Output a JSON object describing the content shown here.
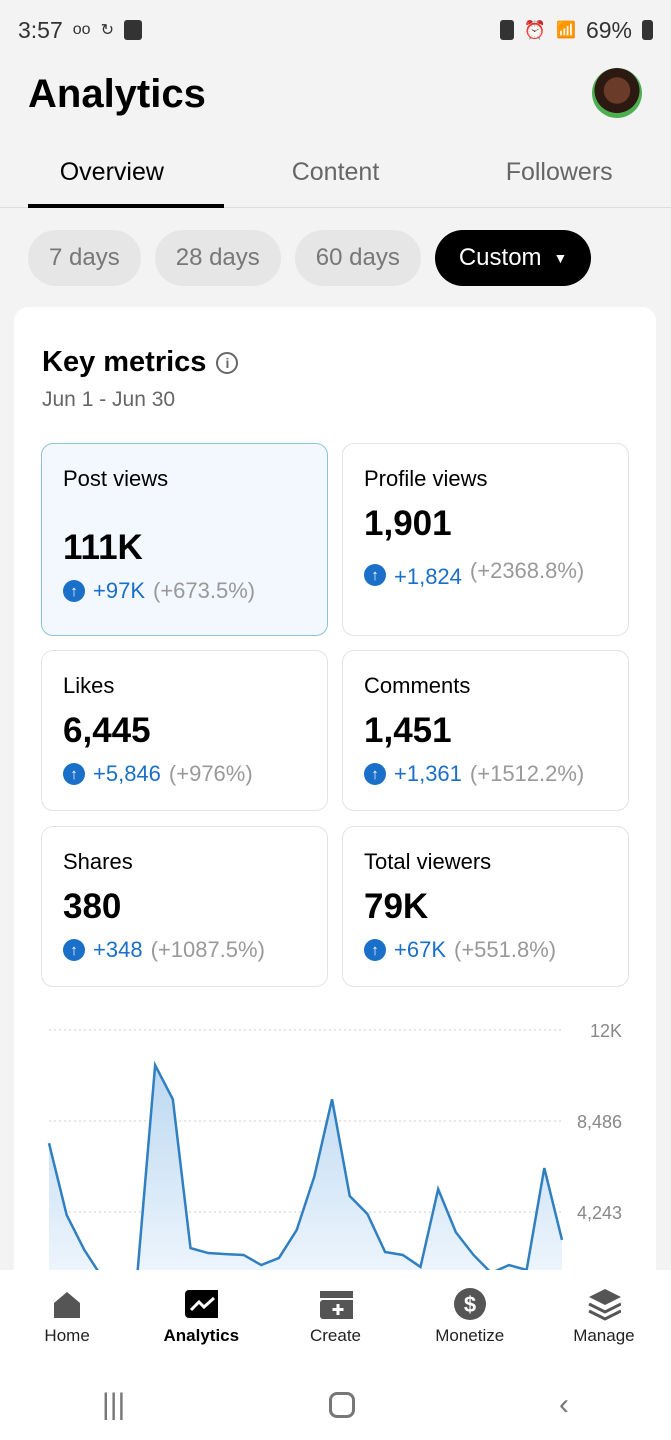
{
  "status": {
    "time": "3:57",
    "battery": "69%"
  },
  "header": {
    "title": "Analytics"
  },
  "tabs": [
    {
      "label": "Overview"
    },
    {
      "label": "Content"
    },
    {
      "label": "Followers"
    }
  ],
  "ranges": [
    {
      "label": "7 days"
    },
    {
      "label": "28 days"
    },
    {
      "label": "60 days"
    },
    {
      "label": "Custom"
    }
  ],
  "key_metrics": {
    "title": "Key metrics",
    "date_range": "Jun 1 - Jun 30",
    "metrics": [
      {
        "label": "Post views",
        "value": "111K",
        "delta": "+97K",
        "pct": "(+673.5%)"
      },
      {
        "label": "Profile views",
        "value": "1,901",
        "delta": "+1,824",
        "pct": "(+2368.8%)"
      },
      {
        "label": "Likes",
        "value": "6,445",
        "delta": "+5,846",
        "pct": "(+976%)"
      },
      {
        "label": "Comments",
        "value": "1,451",
        "delta": "+1,361",
        "pct": "(+1512.2%)"
      },
      {
        "label": "Shares",
        "value": "380",
        "delta": "+348",
        "pct": "(+1087.5%)"
      },
      {
        "label": "Total viewers",
        "value": "79K",
        "delta": "+67K",
        "pct": "(+551.8%)"
      }
    ]
  },
  "chart_data": {
    "type": "area",
    "ylim": [
      0,
      12729
    ],
    "yticks": [
      "12K",
      "8,486",
      "4,243"
    ],
    "ytick_values": [
      12729,
      8486,
      4243
    ],
    "values": [
      7450,
      4100,
      2470,
      1200,
      600,
      1400,
      11090,
      9500,
      2560,
      2330,
      2280,
      2240,
      1770,
      2100,
      3400,
      5900,
      9500,
      4990,
      4150,
      2380,
      2240,
      1680,
      5310,
      3300,
      2240,
      1400,
      1770,
      1540,
      6290,
      2940
    ],
    "color": "#2f7fc1"
  },
  "nav": [
    {
      "label": "Home"
    },
    {
      "label": "Analytics"
    },
    {
      "label": "Create"
    },
    {
      "label": "Monetize"
    },
    {
      "label": "Manage"
    }
  ]
}
